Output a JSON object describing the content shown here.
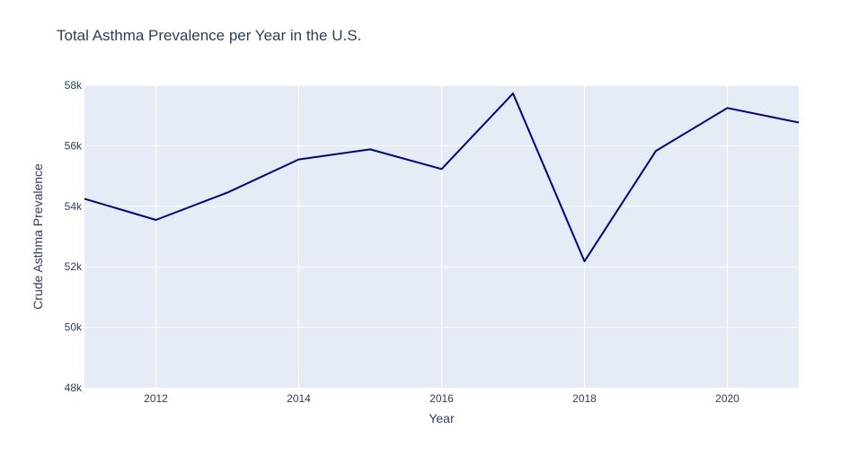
{
  "chart_data": {
    "type": "line",
    "title": "Total Asthma Prevalence per Year in the U.S.",
    "xlabel": "Year",
    "ylabel": "Crude Asthma Prevalence",
    "x": [
      2011,
      2012,
      2013,
      2014,
      2015,
      2016,
      2017,
      2018,
      2019,
      2020,
      2021
    ],
    "values": [
      54250,
      53550,
      54450,
      55550,
      55880,
      55230,
      57730,
      52180,
      55830,
      57250,
      56770
    ],
    "xlim": [
      2011,
      2021
    ],
    "ylim": [
      48000,
      58000
    ],
    "x_ticks": [
      2012,
      2014,
      2016,
      2018,
      2020
    ],
    "x_tick_labels": [
      "2012",
      "2014",
      "2016",
      "2018",
      "2020"
    ],
    "y_ticks": [
      48000,
      50000,
      52000,
      54000,
      56000,
      58000
    ],
    "y_tick_labels": [
      "48k",
      "50k",
      "52k",
      "54k",
      "56k",
      "58k"
    ],
    "grid": true,
    "colors": {
      "line": "#00008b",
      "plot_bg": "#e5ecf6",
      "grid": "#ffffff",
      "text": "#2a3f5f"
    }
  }
}
